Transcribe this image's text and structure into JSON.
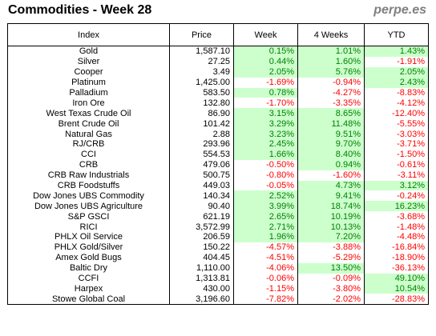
{
  "header": {
    "title": "Commodities - Week 28",
    "brand": "perpe.es"
  },
  "colors": {
    "positive_bg": "#ccffcc",
    "positive_text": "#008000",
    "negative_text": "#ff0000"
  },
  "table": {
    "columns": [
      "Index",
      "Price",
      "Week",
      "4 Weeks",
      "YTD"
    ],
    "rows": [
      {
        "name": "Gold",
        "price": "1,587.10",
        "week": "0.15%",
        "m4": "1.01%",
        "ytd": "1.43%"
      },
      {
        "name": "Silver",
        "price": "27.25",
        "week": "0.44%",
        "m4": "1.60%",
        "ytd": "-1.91%"
      },
      {
        "name": "Cooper",
        "price": "3.49",
        "week": "2.05%",
        "m4": "5.76%",
        "ytd": "2.05%"
      },
      {
        "name": "Platinum",
        "price": "1,425.00",
        "week": "-1.69%",
        "m4": "-0.94%",
        "ytd": "2.43%"
      },
      {
        "name": "Palladium",
        "price": "583.50",
        "week": "0.78%",
        "m4": "-4.27%",
        "ytd": "-8.83%"
      },
      {
        "name": "Iron Ore",
        "price": "132.80",
        "week": "-1.70%",
        "m4": "-3.35%",
        "ytd": "-4.12%"
      },
      {
        "name": "West Texas Crude Oil",
        "price": "86.90",
        "week": "3.15%",
        "m4": "8.65%",
        "ytd": "-12.40%"
      },
      {
        "name": "Brent Crude Oil",
        "price": "101.42",
        "week": "3.29%",
        "m4": "11.48%",
        "ytd": "-5.55%"
      },
      {
        "name": "Natural Gas",
        "price": "2.88",
        "week": "3.23%",
        "m4": "9.51%",
        "ytd": "-3.03%"
      },
      {
        "name": "RJ/CRB",
        "price": "293.96",
        "week": "2.45%",
        "m4": "9.70%",
        "ytd": "-3.71%"
      },
      {
        "name": "CCI",
        "price": "554.53",
        "week": "1.66%",
        "m4": "8.40%",
        "ytd": "-1.50%"
      },
      {
        "name": "CRB",
        "price": "479.06",
        "week": "-0.50%",
        "m4": "0.94%",
        "ytd": "-0.61%"
      },
      {
        "name": "CRB Raw Industrials",
        "price": "500.75",
        "week": "-0.80%",
        "m4": "-1.60%",
        "ytd": "-3.11%"
      },
      {
        "name": "CRB Foodstuffs",
        "price": "449.03",
        "week": "-0.05%",
        "m4": "4.73%",
        "ytd": "3.12%"
      },
      {
        "name": "Dow Jones UBS Commodity",
        "price": "140.34",
        "week": "2.52%",
        "m4": "9.41%",
        "ytd": "-0.24%"
      },
      {
        "name": "Dow Jones UBS Agriculture",
        "price": "90.40",
        "week": "3.99%",
        "m4": "18.74%",
        "ytd": "16.23%"
      },
      {
        "name": "S&P GSCI",
        "price": "621.19",
        "week": "2.65%",
        "m4": "10.19%",
        "ytd": "-3.68%"
      },
      {
        "name": "RICI",
        "price": "3,572.99",
        "week": "2.71%",
        "m4": "10.13%",
        "ytd": "-1.48%"
      },
      {
        "name": "PHLX Oil Service",
        "price": "206.59",
        "week": "1.96%",
        "m4": "7.20%",
        "ytd": "-4.48%"
      },
      {
        "name": "PHLX Gold/Silver",
        "price": "150.22",
        "week": "-4.57%",
        "m4": "-3.88%",
        "ytd": "-16.84%"
      },
      {
        "name": "Amex Gold Bugs",
        "price": "404.45",
        "week": "-4.51%",
        "m4": "-5.29%",
        "ytd": "-18.90%"
      },
      {
        "name": "Baltic Dry",
        "price": "1,110.00",
        "week": "-4.06%",
        "m4": "13.50%",
        "ytd": "-36.13%"
      },
      {
        "name": "CCFI",
        "price": "1,313.81",
        "week": "-0.06%",
        "m4": "-0.09%",
        "ytd": "49.10%"
      },
      {
        "name": "Harpex",
        "price": "430.00",
        "week": "-1.15%",
        "m4": "-3.80%",
        "ytd": "10.54%"
      },
      {
        "name": "Stowe Global Coal",
        "price": "3,196.60",
        "week": "-7.82%",
        "m4": "-2.02%",
        "ytd": "-28.83%"
      }
    ]
  }
}
